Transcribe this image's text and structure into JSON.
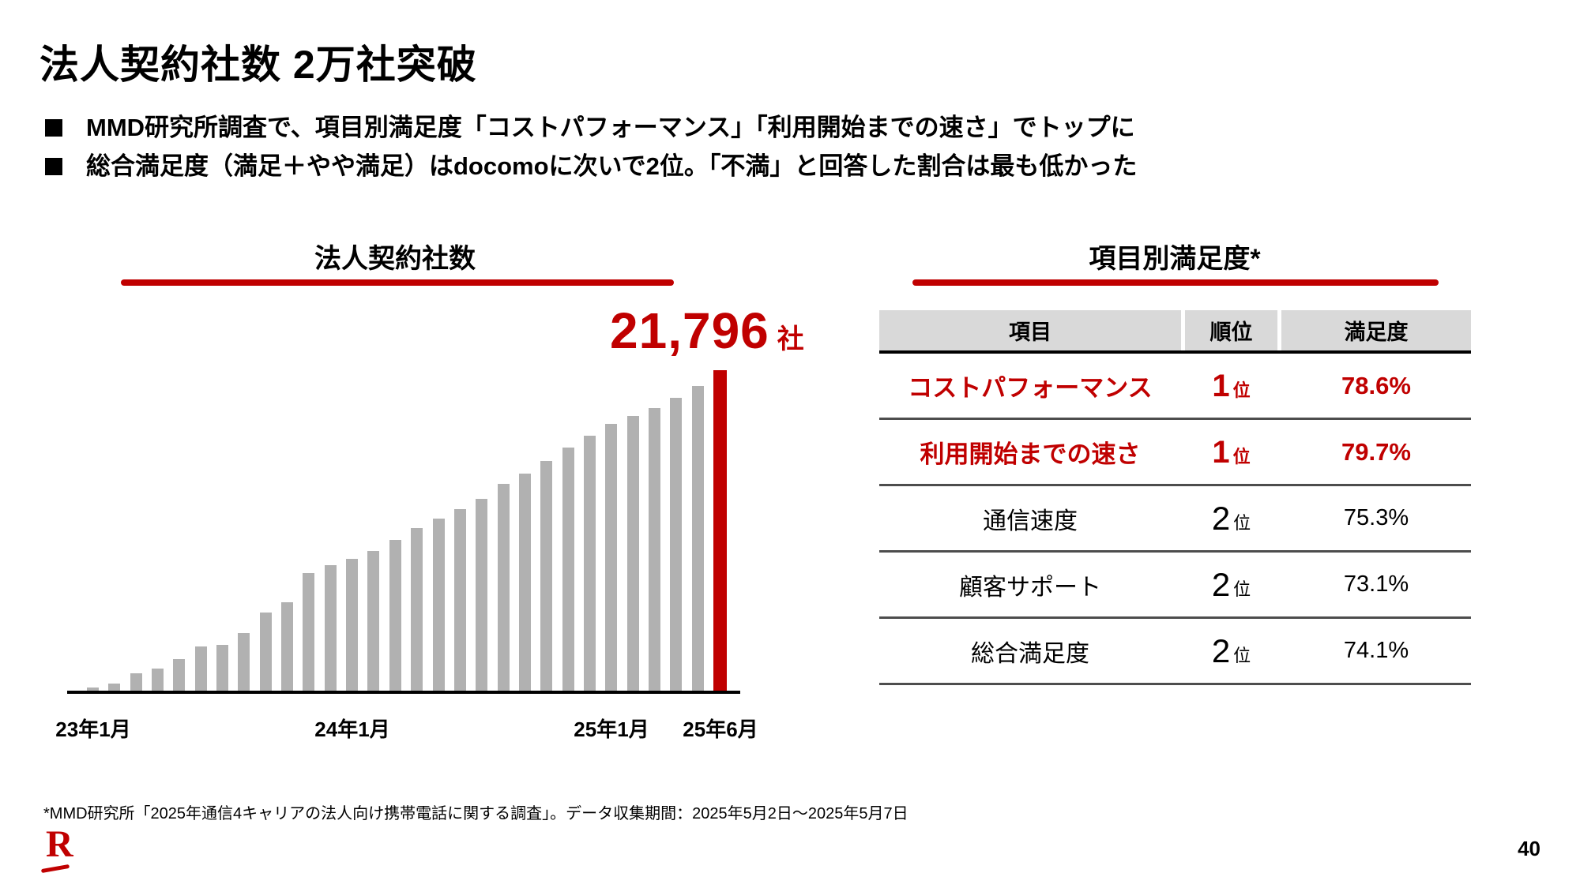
{
  "slide": {
    "title": "法人契約社数 2万社突破",
    "bullets": [
      "MMD研究所調査で、項目別満足度「コストパフォーマンス」「利用開始までの速さ」でトップに",
      "総合満足度（満足＋やや満足）はdocomoに次いで2位。「不満」と回答した割合は最も低かった"
    ],
    "footnote": "*MMD研究所「2025年通信4キャリアの法人向け携帯電話に関する調査」。データ収集期間：2025年5月2日～2025年5月7日",
    "page_number": "40",
    "logo_letter": "R"
  },
  "colors": {
    "accent_red": "#C00000",
    "bar_gray": "#B1B1B1",
    "header_gray": "#D9D9D9",
    "separator_gray": "#4D4D4D",
    "text_black": "#000000"
  },
  "chart": {
    "title": "法人契約社数",
    "highlight_value": "21,796",
    "highlight_unit": "社"
  },
  "chart_data": {
    "type": "bar",
    "title": "法人契約社数",
    "unit": "社",
    "x": [
      "23年1月",
      "23年2月",
      "23年3月",
      "23年4月",
      "23年5月",
      "23年6月",
      "23年7月",
      "23年8月",
      "23年9月",
      "23年10月",
      "23年11月",
      "23年12月",
      "24年1月",
      "24年2月",
      "24年3月",
      "24年4月",
      "24年5月",
      "24年6月",
      "24年7月",
      "24年8月",
      "24年9月",
      "24年10月",
      "24年11月",
      "24年12月",
      "25年1月",
      "25年2月",
      "25年3月",
      "25年4月",
      "25年5月",
      "25年6月"
    ],
    "values": [
      320,
      590,
      1280,
      1600,
      2240,
      3100,
      3210,
      4010,
      5400,
      6090,
      8070,
      8600,
      9030,
      9560,
      10310,
      11110,
      11750,
      12390,
      13090,
      14100,
      14800,
      15650,
      16560,
      17360,
      18160,
      18700,
      19230,
      19920,
      20730,
      21796
    ],
    "highlight_index": 29,
    "highlight_label": "21,796 社",
    "x_ticks_shown": [
      "23年1月",
      "24年1月",
      "25年1月",
      "25年6月"
    ],
    "ylim": [
      0,
      21796
    ],
    "grid": false,
    "legend": false
  },
  "table": {
    "title": "項目別満足度*",
    "columns": [
      "項目",
      "順位",
      "満足度"
    ],
    "rows": [
      {
        "item": "コストパフォーマンス",
        "rank": "1",
        "rank_unit": "位",
        "satisfaction": "78.6%",
        "highlight": true
      },
      {
        "item": "利用開始までの速さ",
        "rank": "1",
        "rank_unit": "位",
        "satisfaction": "79.7%",
        "highlight": true
      },
      {
        "item": "通信速度",
        "rank": "2",
        "rank_unit": "位",
        "satisfaction": "75.3%",
        "highlight": false
      },
      {
        "item": "顧客サポート",
        "rank": "2",
        "rank_unit": "位",
        "satisfaction": "73.1%",
        "highlight": false
      },
      {
        "item": "総合満足度",
        "rank": "2",
        "rank_unit": "位",
        "satisfaction": "74.1%",
        "highlight": false
      }
    ]
  }
}
